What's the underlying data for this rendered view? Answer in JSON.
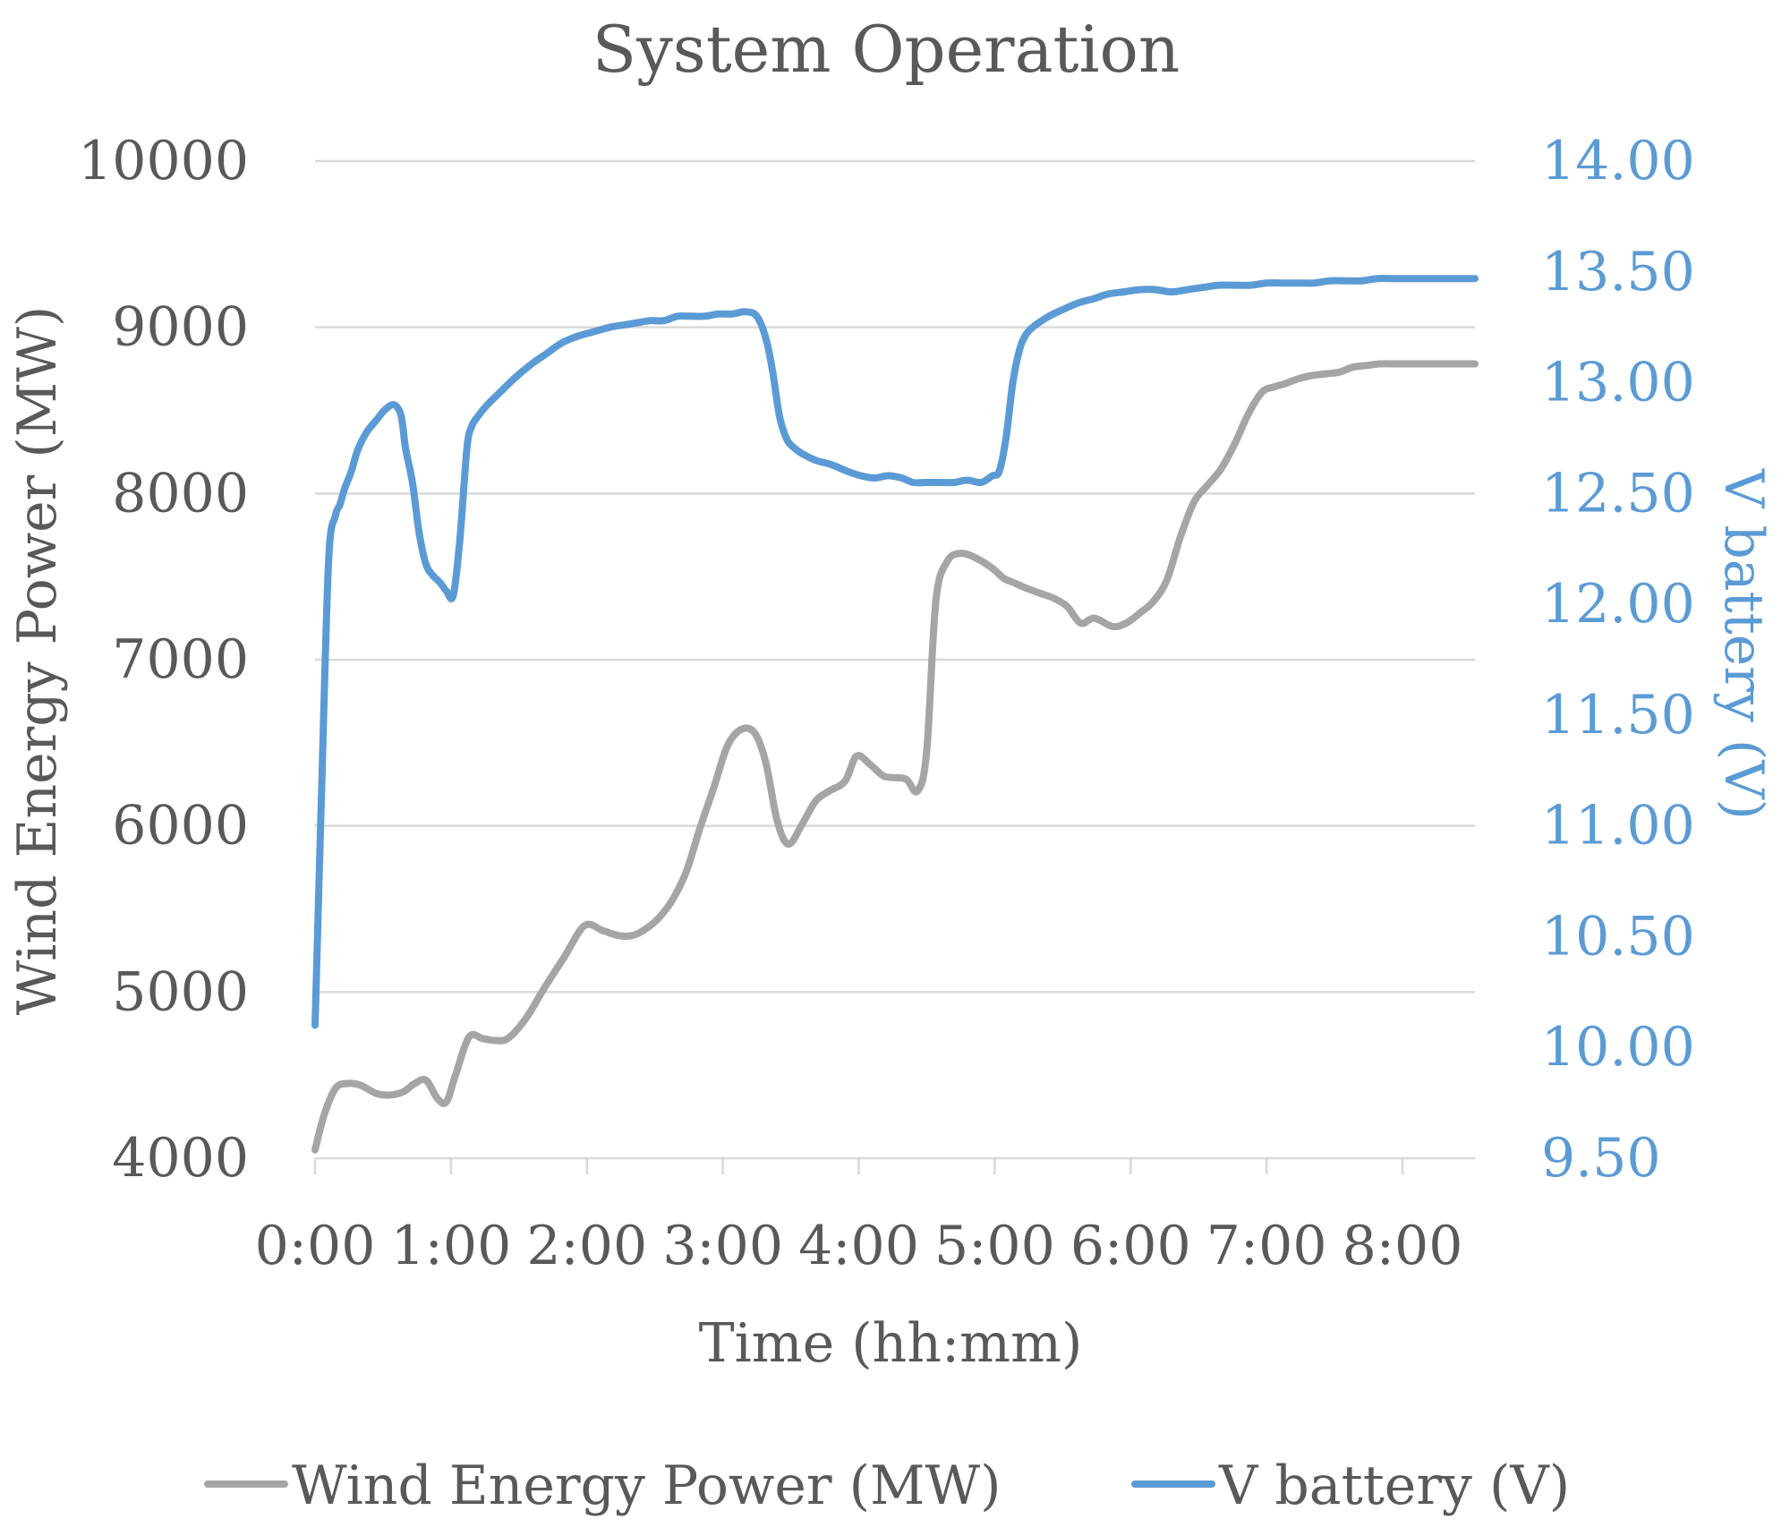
{
  "chart_data": {
    "type": "line",
    "title": "System Operation",
    "xlabel": "Time (hh:mm)",
    "ylabel_left": "Wind Energy Power (MW)",
    "ylabel_right": "V battery (V)",
    "x_unit": "minutes",
    "x_ticks": [
      {
        "value": 0,
        "label": "0:00"
      },
      {
        "value": 60,
        "label": "1:00"
      },
      {
        "value": 120,
        "label": "2:00"
      },
      {
        "value": 180,
        "label": "3:00"
      },
      {
        "value": 240,
        "label": "4:00"
      },
      {
        "value": 300,
        "label": "5:00"
      },
      {
        "value": 360,
        "label": "6:00"
      },
      {
        "value": 420,
        "label": "7:00"
      },
      {
        "value": 480,
        "label": "8:00"
      }
    ],
    "xlim": [
      0,
      512
    ],
    "ylim_left": [
      4000,
      10000
    ],
    "ylim_right": [
      9.5,
      14.0
    ],
    "y_ticks_left": [
      "4000",
      "5000",
      "6000",
      "7000",
      "8000",
      "9000",
      "10000"
    ],
    "y_ticks_right": [
      "9.50",
      "10.00",
      "10.50",
      "11.00",
      "11.50",
      "12.00",
      "12.50",
      "13.00",
      "13.50",
      "14.00"
    ],
    "grid": true,
    "legend_position": "bottom",
    "series": [
      {
        "name": "Wind Energy Power (MW)",
        "axis": "left",
        "color": "#a5a5a5",
        "x": [
          0,
          4,
          9,
          14,
          20,
          27,
          33,
          39,
          44,
          49,
          54,
          58,
          62,
          68,
          74,
          79,
          85,
          93,
          101,
          110,
          119,
          127,
          134,
          140,
          146,
          152,
          158,
          164,
          170,
          176,
          182,
          188,
          194,
          199,
          204,
          209,
          215,
          221,
          227,
          234,
          239,
          245,
          251,
          256,
          261,
          266,
          270,
          274,
          279,
          285,
          292,
          299,
          304,
          309,
          314,
          320,
          326,
          332,
          338,
          344,
          352,
          358,
          364,
          370,
          376,
          382,
          388,
          394,
          400,
          406,
          412,
          418,
          423,
          428,
          434,
          440,
          446,
          452,
          458,
          464,
          470,
          476,
          482,
          488,
          494,
          500,
          506,
          512
        ],
        "values": [
          4050,
          4260,
          4420,
          4450,
          4440,
          4390,
          4380,
          4400,
          4450,
          4470,
          4360,
          4340,
          4500,
          4730,
          4720,
          4710,
          4720,
          4840,
          5020,
          5210,
          5400,
          5370,
          5340,
          5340,
          5380,
          5450,
          5560,
          5730,
          5990,
          6230,
          6480,
          6580,
          6560,
          6380,
          6030,
          5890,
          6010,
          6150,
          6210,
          6270,
          6420,
          6370,
          6300,
          6290,
          6280,
          6210,
          6450,
          7350,
          7590,
          7640,
          7610,
          7550,
          7490,
          7460,
          7430,
          7400,
          7370,
          7320,
          7220,
          7250,
          7200,
          7220,
          7280,
          7350,
          7480,
          7740,
          7950,
          8050,
          8150,
          8300,
          8480,
          8610,
          8640,
          8660,
          8690,
          8710,
          8720,
          8730,
          8760,
          8770,
          8780,
          8780,
          8780,
          8780,
          8780,
          8780,
          8780,
          8780
        ]
      },
      {
        "name": "V battery (V)",
        "axis": "right",
        "color": "#5b9bd5",
        "x": [
          0,
          3,
          6,
          9,
          11,
          13,
          16,
          19,
          23,
          27,
          31,
          35,
          38,
          40,
          43,
          46,
          49,
          52,
          55,
          58,
          61,
          64,
          67,
          69,
          72,
          76,
          81,
          88,
          95,
          102,
          109,
          116,
          123,
          130,
          136,
          142,
          148,
          154,
          160,
          166,
          172,
          178,
          184,
          190,
          195,
          199,
          202,
          205,
          208,
          211,
          215,
          221,
          228,
          235,
          241,
          247,
          253,
          259,
          264,
          270,
          276,
          282,
          288,
          294,
          299,
          302,
          305,
          308,
          311,
          314,
          318,
          324,
          330,
          337,
          344,
          350,
          357,
          364,
          371,
          378,
          385,
          392,
          399,
          406,
          413,
          420,
          427,
          434,
          441,
          448,
          455,
          462,
          469,
          476,
          483,
          490,
          497,
          504,
          512
        ],
        "values": [
          10.1,
          11.2,
          12.2,
          12.4,
          12.45,
          12.52,
          12.6,
          12.7,
          12.78,
          12.83,
          12.88,
          12.9,
          12.85,
          12.7,
          12.55,
          12.32,
          12.18,
          12.13,
          12.1,
          12.06,
          12.04,
          12.3,
          12.7,
          12.8,
          12.85,
          12.9,
          12.95,
          13.02,
          13.08,
          13.13,
          13.18,
          13.21,
          13.23,
          13.25,
          13.26,
          13.27,
          13.28,
          13.28,
          13.3,
          13.3,
          13.3,
          13.31,
          13.31,
          13.32,
          13.3,
          13.2,
          13.05,
          12.85,
          12.75,
          12.71,
          12.68,
          12.65,
          12.63,
          12.6,
          12.58,
          12.57,
          12.58,
          12.57,
          12.55,
          12.55,
          12.55,
          12.55,
          12.56,
          12.55,
          12.58,
          12.6,
          12.75,
          13.0,
          13.15,
          13.22,
          13.26,
          13.3,
          13.33,
          13.36,
          13.38,
          13.4,
          13.41,
          13.42,
          13.42,
          13.41,
          13.42,
          13.43,
          13.44,
          13.44,
          13.44,
          13.45,
          13.45,
          13.45,
          13.45,
          13.46,
          13.46,
          13.46,
          13.47,
          13.47,
          13.47,
          13.47,
          13.47,
          13.47,
          13.47
        ]
      }
    ]
  }
}
